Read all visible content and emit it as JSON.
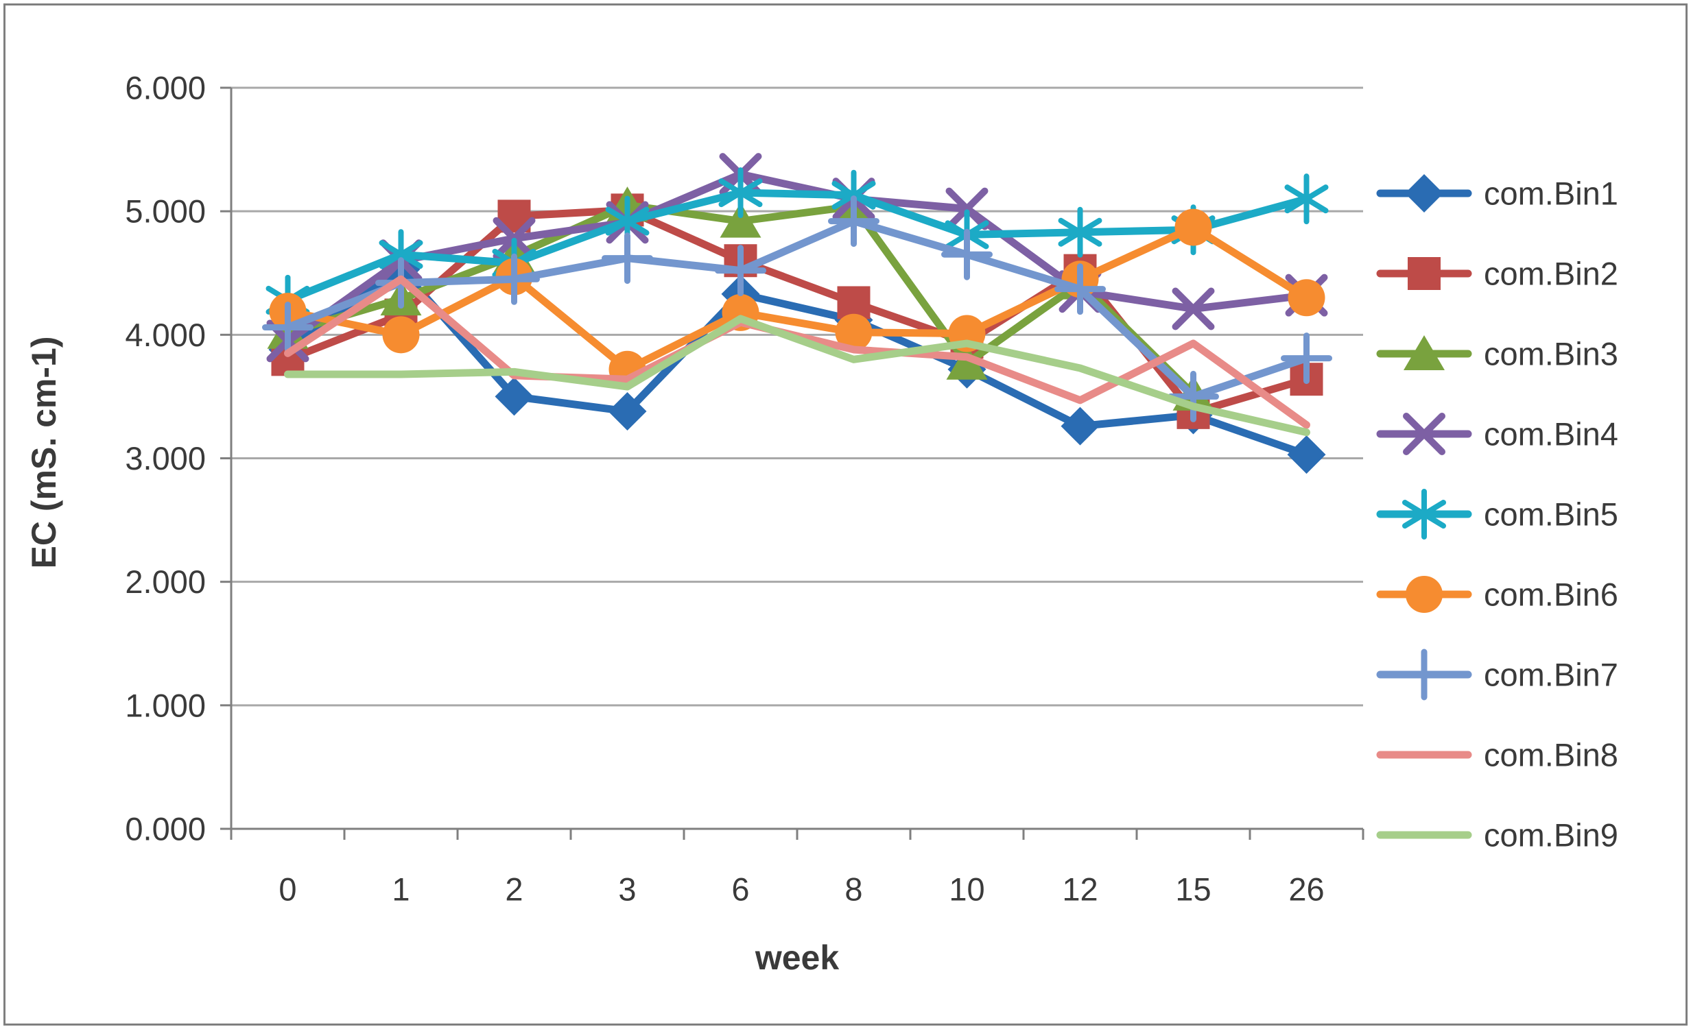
{
  "figure": {
    "background": "#FFFFFF",
    "border_color": "#7F7F7F",
    "text_color": "#3A3A3A",
    "gridline_color": "#A8A8A8",
    "axis_line_color": "#7F7F7F"
  },
  "chart_data": {
    "type": "line",
    "title": "",
    "xlabel": "week",
    "ylabel": "EC (mS. cm-1)",
    "x_categories": [
      "0",
      "1",
      "2",
      "3",
      "6",
      "8",
      "10",
      "12",
      "15",
      "26"
    ],
    "y_ticks": [
      "0.000",
      "1.000",
      "2.000",
      "3.000",
      "4.000",
      "5.000",
      "6.000"
    ],
    "ylim": [
      0,
      6
    ],
    "grid": "horizontal",
    "legend_position": "right",
    "series": [
      {
        "name": "com.Bin1",
        "color": "#2A6CB3",
        "marker": "diamond",
        "values": [
          3.88,
          4.53,
          3.5,
          3.38,
          4.33,
          4.12,
          3.72,
          3.26,
          3.35,
          3.03
        ]
      },
      {
        "name": "com.Bin2",
        "color": "#BE4B48",
        "marker": "square",
        "values": [
          3.8,
          4.16,
          4.96,
          5.01,
          4.6,
          4.26,
          3.94,
          4.52,
          3.37,
          3.64
        ]
      },
      {
        "name": "com.Bin3",
        "color": "#79A23E",
        "marker": "triangle",
        "values": [
          4.02,
          4.29,
          4.64,
          5.05,
          4.92,
          5.04,
          3.77,
          4.42,
          3.52,
          null
        ]
      },
      {
        "name": "com.Bin4",
        "color": "#7D60A4",
        "marker": "x",
        "values": [
          3.95,
          4.6,
          4.78,
          4.91,
          5.3,
          5.1,
          5.02,
          4.35,
          4.21,
          4.32
        ]
      },
      {
        "name": "com.Bin5",
        "color": "#1CAAC6",
        "marker": "asterisk",
        "values": [
          4.28,
          4.65,
          4.58,
          4.92,
          5.15,
          5.13,
          4.81,
          4.83,
          4.85,
          5.1
        ]
      },
      {
        "name": "com.Bin6",
        "color": "#F68C30",
        "marker": "circle",
        "values": [
          4.19,
          4.0,
          4.47,
          3.72,
          4.18,
          4.02,
          4.01,
          4.45,
          4.87,
          4.3
        ]
      },
      {
        "name": "com.Bin7",
        "color": "#7396CE",
        "marker": "plus",
        "values": [
          4.06,
          4.42,
          4.45,
          4.62,
          4.52,
          4.92,
          4.65,
          4.37,
          3.5,
          3.81
        ]
      },
      {
        "name": "com.Bin8",
        "color": "#E88B88",
        "marker": "none",
        "values": [
          3.85,
          4.45,
          3.67,
          3.64,
          4.1,
          3.88,
          3.82,
          3.47,
          3.93,
          3.27
        ]
      },
      {
        "name": "com.Bin9",
        "color": "#A6CE8A",
        "marker": "none",
        "values": [
          3.68,
          3.68,
          3.7,
          3.58,
          4.13,
          3.8,
          3.93,
          3.73,
          3.42,
          3.21
        ]
      }
    ]
  }
}
